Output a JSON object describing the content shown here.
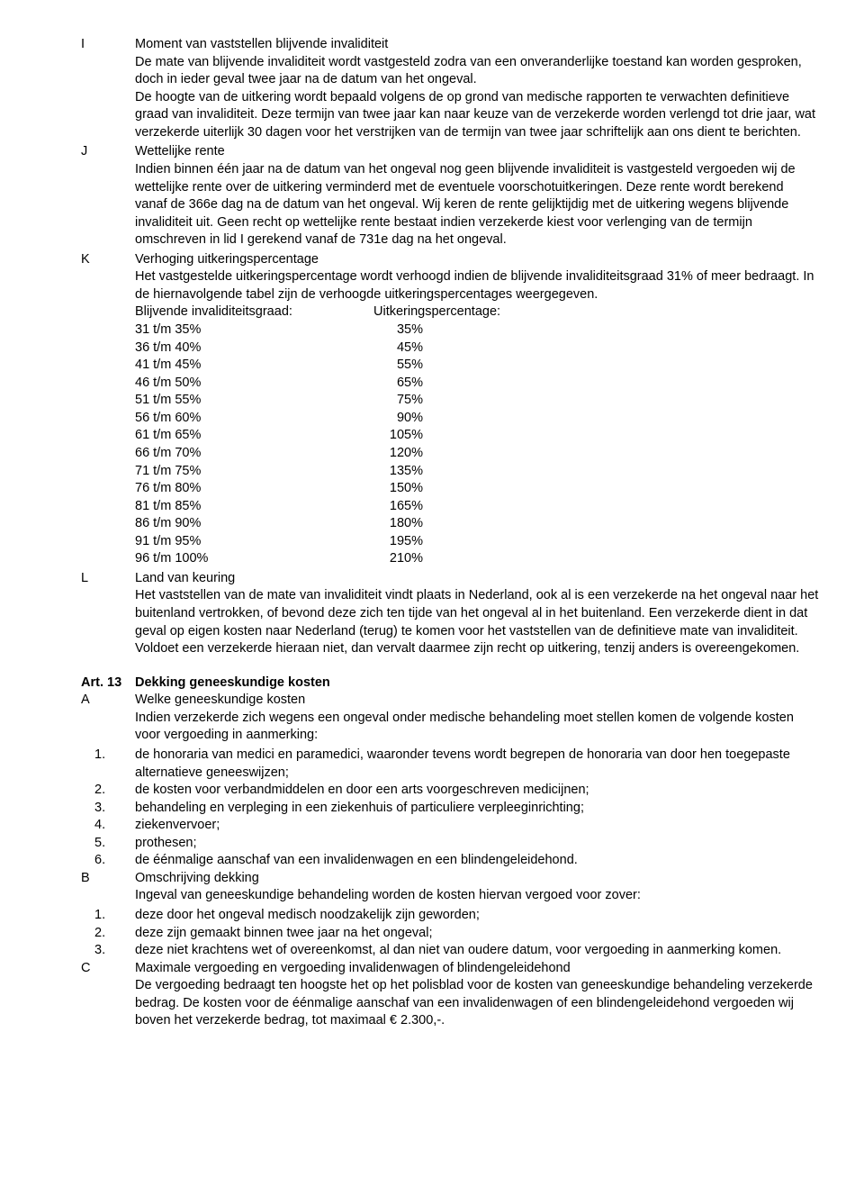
{
  "sections": {
    "I": {
      "letter": "I",
      "title": "Moment van vaststellen blijvende invaliditeit",
      "body": "De mate van blijvende invaliditeit wordt vastgesteld zodra van een onveranderlijke toestand kan worden gesproken, doch in ieder geval twee jaar na de datum van het ongeval.",
      "body2": "De hoogte van de uitkering wordt bepaald volgens de op grond van medische rapporten te verwachten definitieve graad van invaliditeit. Deze termijn van twee jaar kan naar keuze van de verzekerde worden verlengd tot drie jaar, wat verzekerde uiterlijk 30 dagen voor het verstrijken van de termijn van twee jaar schriftelijk aan ons dient te berichten."
    },
    "J": {
      "letter": "J",
      "title": "Wettelijke rente",
      "body": "Indien binnen één jaar na de datum van het ongeval nog geen blijvende invaliditeit is vastgesteld vergoeden wij de wettelijke rente over de uitkering verminderd met de eventuele voorschotuitkeringen. Deze rente wordt berekend vanaf de 366e dag na de datum van het ongeval. Wij keren de rente gelijktijdig met de uitkering wegens blijvende invaliditeit uit. Geen recht op wettelijke rente bestaat indien verzekerde kiest voor verlenging van de termijn omschreven in lid I gerekend vanaf de 731e dag na het ongeval."
    },
    "K": {
      "letter": "K",
      "title": "Verhoging uitkeringspercentage",
      "body": "Het vastgestelde uitkeringspercentage wordt verhoogd indien de blijvende invaliditeitsgraad 31% of meer bedraagt. In de hiernavolgende tabel zijn de verhoogde uitkeringspercentages weergegeven.",
      "tableHeader1": "Blijvende invaliditeitsgraad:",
      "tableHeader2": "Uitkeringspercentage:",
      "rows": [
        {
          "c1": "31 t/m 35%",
          "c2": "35%"
        },
        {
          "c1": "36 t/m 40%",
          "c2": "45%"
        },
        {
          "c1": "41 t/m 45%",
          "c2": "55%"
        },
        {
          "c1": "46 t/m 50%",
          "c2": "65%"
        },
        {
          "c1": "51 t/m 55%",
          "c2": "75%"
        },
        {
          "c1": "56 t/m 60%",
          "c2": "90%"
        },
        {
          "c1": "61 t/m 65%",
          "c2": "105%"
        },
        {
          "c1": "66 t/m 70%",
          "c2": "120%"
        },
        {
          "c1": "71 t/m 75%",
          "c2": "135%"
        },
        {
          "c1": "76 t/m 80%",
          "c2": "150%"
        },
        {
          "c1": "81 t/m 85%",
          "c2": "165%"
        },
        {
          "c1": "86 t/m 90%",
          "c2": "180%"
        },
        {
          "c1": "91 t/m 95%",
          "c2": "195%"
        },
        {
          "c1": "96 t/m 100%",
          "c2": "210%"
        }
      ]
    },
    "L": {
      "letter": "L",
      "title": "Land van keuring",
      "body": "Het vaststellen van de mate van invaliditeit vindt plaats in Nederland, ook al is een verzekerde na het ongeval naar het buitenland vertrokken, of bevond deze zich ten tijde van het ongeval al in het buitenland. Een verzekerde dient in dat geval op eigen kosten naar Nederland (terug) te komen voor het vaststellen van de definitieve mate van invaliditeit. Voldoet een verzekerde hieraan niet, dan vervalt daarmee zijn recht op uitkering, tenzij anders is overeengekomen."
    }
  },
  "art13": {
    "label": "Art. 13",
    "title": "Dekking geneeskundige kosten",
    "A": {
      "letter": "A",
      "title": "Welke geneeskundige kosten",
      "body": "Indien verzekerde zich wegens een ongeval onder medische behandeling moet stellen komen de volgende kosten voor vergoeding in aanmerking:",
      "items": [
        {
          "n": "1.",
          "t": "de honoraria van medici en paramedici, waaronder tevens wordt begrepen de honoraria van door hen toegepaste alternatieve geneeswijzen;"
        },
        {
          "n": "2.",
          "t": "de kosten voor verbandmiddelen en door een arts voorgeschreven medicijnen;"
        },
        {
          "n": "3.",
          "t": "behandeling en verpleging in een ziekenhuis of particuliere verpleeginrichting;"
        },
        {
          "n": "4.",
          "t": "ziekenvervoer;"
        },
        {
          "n": "5.",
          "t": "prothesen;"
        },
        {
          "n": "6.",
          "t": "de éénmalige aanschaf van een invalidenwagen en een blindengeleidehond."
        }
      ]
    },
    "B": {
      "letter": "B",
      "title": "Omschrijving dekking",
      "body": "Ingeval van geneeskundige behandeling worden de kosten hiervan vergoed voor zover:",
      "items": [
        {
          "n": "1.",
          "t": "deze door het ongeval medisch noodzakelijk zijn geworden;"
        },
        {
          "n": "2.",
          "t": "deze zijn gemaakt binnen twee jaar na het ongeval;"
        },
        {
          "n": "3.",
          "t": "deze niet krachtens wet of overeenkomst, al dan niet van oudere datum, voor vergoeding in aanmerking komen."
        }
      ]
    },
    "C": {
      "letter": "C",
      "title": "Maximale vergoeding en vergoeding invalidenwagen of blindengeleidehond",
      "body": "De vergoeding bedraagt ten hoogste het op het polisblad voor de kosten van geneeskundige behandeling verzekerde bedrag. De kosten voor de éénmalige aanschaf van een invalidenwagen of een blindengeleidehond vergoeden wij boven het verzekerde bedrag, tot maximaal € 2.300,-."
    }
  }
}
